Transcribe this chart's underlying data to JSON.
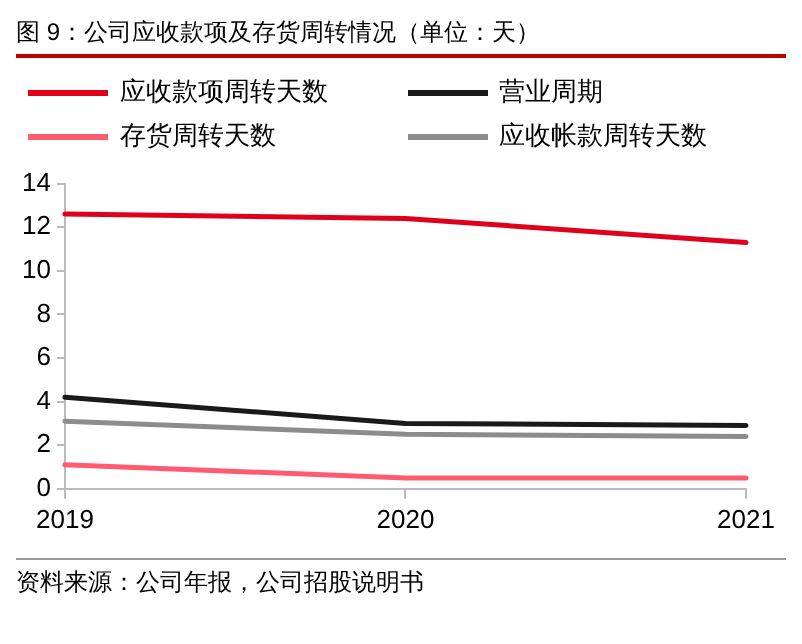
{
  "chart_data": {
    "type": "line",
    "title": "图 9：公司应收款项及存货周转情况（单位：天）",
    "x": [
      2019,
      2020,
      2021
    ],
    "xlim": [
      2019,
      2021
    ],
    "xticks": [
      2019,
      2020,
      2021
    ],
    "ylim": [
      0,
      14
    ],
    "yticks": [
      0,
      2,
      4,
      6,
      8,
      10,
      12,
      14
    ],
    "legend": "top",
    "marker": "none",
    "series": [
      {
        "name": "应收款项周转天数",
        "color": "#e0001b",
        "values": [
          12.6,
          12.4,
          11.3
        ]
      },
      {
        "name": "营业周期",
        "color": "#1a1a1a",
        "values": [
          4.2,
          3.0,
          2.9
        ]
      },
      {
        "name": "存货周转天数",
        "color": "#ff5b6e",
        "values": [
          1.1,
          0.5,
          0.5
        ]
      },
      {
        "name": "应收帐款周转天数",
        "color": "#8c8c8c",
        "values": [
          3.1,
          2.5,
          2.4
        ]
      }
    ],
    "annotations": [
      "资料来源：公司年报，公司招股说明书"
    ]
  }
}
